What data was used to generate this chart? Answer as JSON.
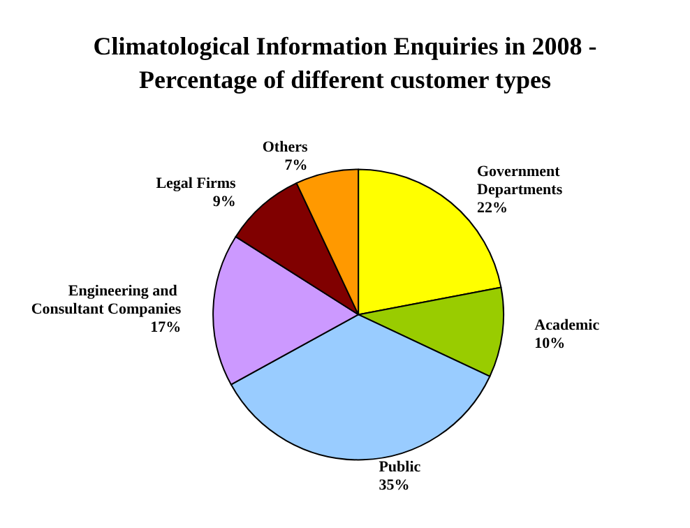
{
  "chart_data": {
    "type": "pie",
    "title": "Climatological Information Enquiries in 2008 -\nPercentage of different customer types",
    "categories": [
      "Government Departments",
      "Academic",
      "Public",
      "Engineering and Consultant Companies",
      "Legal Firms",
      "Others"
    ],
    "values": [
      22,
      10,
      35,
      17,
      9,
      7
    ],
    "value_labels": [
      "22%",
      "10%",
      "35%",
      "17%",
      "9%",
      "7%"
    ],
    "colors": [
      "#ffff00",
      "#99cc00",
      "#99ccff",
      "#cc99ff",
      "#800000",
      "#ff9900"
    ],
    "legend": false
  }
}
